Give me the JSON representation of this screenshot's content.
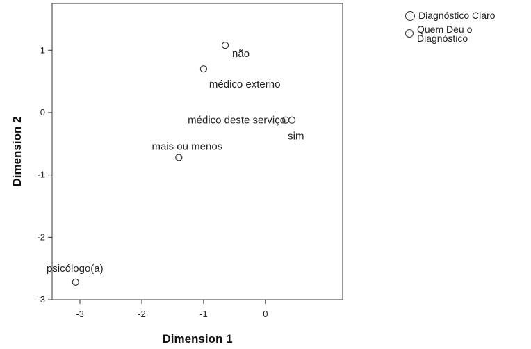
{
  "chart_data": {
    "type": "scatter",
    "title": "",
    "xlabel": "Dimension 1",
    "ylabel": "Dimension 2",
    "xlim": [
      -3.45,
      1.25
    ],
    "ylim": [
      -3.0,
      1.75
    ],
    "xticks": [
      -3,
      -2,
      -1,
      0
    ],
    "yticks": [
      1,
      0,
      -1,
      -2,
      -3
    ],
    "grid": false,
    "legend_position": "top-right, outside plot",
    "series": [
      {
        "name": "Diagnóstico Claro",
        "marker": "circle",
        "points": [
          {
            "label": "não",
            "x": -0.65,
            "y": 1.08
          },
          {
            "label": "sim",
            "x": 0.33,
            "y": -0.12
          },
          {
            "label": "mais ou menos",
            "x": -1.4,
            "y": -0.72
          }
        ]
      },
      {
        "name": "Quem Deu o Diagnóstico",
        "marker": "circle",
        "points": [
          {
            "label": "médico externo",
            "x": -1.0,
            "y": 0.7
          },
          {
            "label": "médico deste serviço",
            "x": 0.43,
            "y": -0.12
          },
          {
            "label": "psicólogo(a)",
            "x": -3.07,
            "y": -2.72
          }
        ]
      }
    ]
  },
  "legend": {
    "items": [
      {
        "label": "Diagnóstico Claro"
      },
      {
        "label": "Quem Deu o Diagnóstico"
      }
    ]
  }
}
